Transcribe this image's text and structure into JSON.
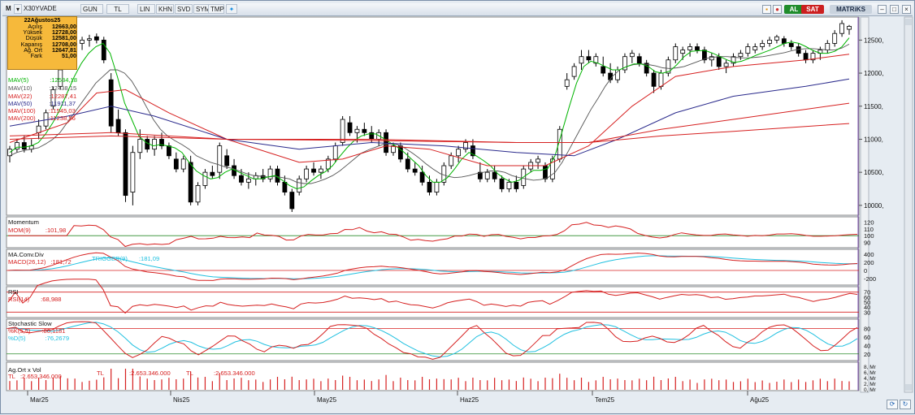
{
  "toolbar": {
    "menu_letter": "M",
    "symbol": "X30YVADE",
    "period": "GUN",
    "currency": "TL",
    "scale_buttons": [
      "LIN",
      "KHN",
      "SVD",
      "SYM",
      "TMP"
    ],
    "buy_label": "AL",
    "sell_label": "SAT",
    "brand": "MATRiKS",
    "colors": {
      "buy": "#1f8c2b",
      "sell": "#cc1f1f",
      "brand_bg": "#c9d3de"
    }
  },
  "infobox": {
    "date": "22Ağustos25",
    "rows": [
      {
        "label": "Açılış",
        "value": "12663,00"
      },
      {
        "label": "Yüksek",
        "value": "12728,00"
      },
      {
        "label": "Düşük",
        "value": "12581,00"
      },
      {
        "label": "Kapanış",
        "value": "12708,00"
      },
      {
        "label": "Ağ. Ort",
        "value": "12647,81"
      },
      {
        "label": "Fark",
        "value": "51,00"
      }
    ]
  },
  "ma_legend": [
    {
      "label": "MAV(5)",
      "value": ":12534,18",
      "color": "#00b400"
    },
    {
      "label": "MAV(10)",
      "value": ":12438,15",
      "color": "#555555"
    },
    {
      "label": "MAV(22)",
      "value": ":12287,41",
      "color": "#d62020"
    },
    {
      "label": "MAV(50)",
      "value": ":11911,37",
      "color": "#2a2a8c"
    },
    {
      "label": "MAV(100)",
      "value": ":11545,03",
      "color": "#d62020"
    },
    {
      "label": "MAV(200)",
      "value": ":11238,56",
      "color": "#d62020"
    }
  ],
  "panels": {
    "momentum": {
      "title": "Momentum",
      "label": "MOM(9)",
      "value": ":101,98",
      "ticks": [
        "120",
        "110",
        "100",
        "90"
      ],
      "color": "#d62020"
    },
    "macd": {
      "title": "MA.Conv.Div",
      "label": "MACD(26,12)",
      "value": ":181,72",
      "trigger_label": "TRIGGER(9)",
      "trigger_value": ":181,09",
      "ticks": [
        "400",
        "200",
        "0",
        "-200"
      ],
      "color": "#d62020",
      "trigger_color": "#20c0e0"
    },
    "rsi": {
      "title": "RSI",
      "label": "RSI(14)",
      "value": ":68,988",
      "ticks": [
        "70",
        "60",
        "50",
        "40",
        "30"
      ],
      "color": "#d62020"
    },
    "stoch": {
      "title": "Stochastic Slow",
      "k_label": "%K(5,5)",
      "k_value": ":80,1181",
      "d_label": "%D(5)",
      "d_value": ":76,2679",
      "ticks": [
        "80",
        "60",
        "40",
        "20"
      ],
      "k_color": "#d62020",
      "d_color": "#20c0e0"
    },
    "volume": {
      "title": "Ag.Ort x Vol",
      "unit_labels": [
        "TL",
        "TL",
        "TL"
      ],
      "values_text": [
        ":2.653.346.000",
        ":2.653.346.000",
        ":2.653.346.000"
      ],
      "ticks": [
        "8, Mr",
        "6, Mr",
        "4, Mr",
        "2, Mr",
        "0, Mr"
      ],
      "color": "#d62020"
    }
  },
  "chart_data": {
    "type": "candlestick",
    "price_axis_ticks": [
      "12500,",
      "12000,",
      "11500,",
      "11000,",
      "10500,",
      "10000,"
    ],
    "ylim": [
      9800,
      12900
    ],
    "x_labels": [
      "Mar25",
      "Nis25",
      "May25",
      "Haz25",
      "Tem25",
      "Ağu25"
    ],
    "candles_ohlc": [
      [
        10750,
        10900,
        10650,
        10850
      ],
      [
        10850,
        11000,
        10800,
        10950
      ],
      [
        10950,
        11050,
        10800,
        10850
      ],
      [
        10850,
        11000,
        10800,
        10900
      ],
      [
        11100,
        11300,
        11000,
        11200
      ],
      [
        11200,
        11450,
        11150,
        11400
      ],
      [
        11500,
        11800,
        11450,
        11750
      ],
      [
        11800,
        12100,
        11750,
        12050
      ],
      [
        12100,
        12400,
        12050,
        12350
      ],
      [
        12350,
        12500,
        12250,
        12450
      ],
      [
        12450,
        12550,
        12350,
        12500
      ],
      [
        12500,
        12580,
        12400,
        12520
      ],
      [
        12550,
        12600,
        12450,
        12500
      ],
      [
        12500,
        12550,
        12150,
        12200
      ],
      [
        11900,
        12000,
        11100,
        11200
      ],
      [
        11300,
        11450,
        11050,
        11100
      ],
      [
        11100,
        11150,
        10050,
        10150
      ],
      [
        10200,
        10900,
        10000,
        10800
      ],
      [
        10800,
        11150,
        10700,
        11000
      ],
      [
        11000,
        11050,
        10800,
        10850
      ],
      [
        10850,
        11050,
        10750,
        11000
      ],
      [
        11000,
        11100,
        10850,
        10900
      ],
      [
        10900,
        10950,
        10700,
        10750
      ],
      [
        10700,
        10800,
        10500,
        10550
      ],
      [
        10550,
        10750,
        10500,
        10700
      ],
      [
        10650,
        10750,
        10000,
        10050
      ],
      [
        10050,
        10350,
        10000,
        10300
      ],
      [
        10300,
        10550,
        10250,
        10500
      ],
      [
        10500,
        10600,
        10400,
        10450
      ],
      [
        10500,
        10950,
        10400,
        10900
      ],
      [
        10750,
        10850,
        10550,
        10600
      ],
      [
        10600,
        10700,
        10400,
        10450
      ],
      [
        10450,
        10550,
        10300,
        10350
      ],
      [
        10350,
        10500,
        10250,
        10400
      ],
      [
        10400,
        10500,
        10300,
        10450
      ],
      [
        10450,
        10550,
        10350,
        10400
      ],
      [
        10400,
        10600,
        10350,
        10550
      ],
      [
        10550,
        10600,
        10300,
        10350
      ],
      [
        10350,
        10450,
        10150,
        10200
      ],
      [
        10200,
        10250,
        9900,
        9950
      ],
      [
        10200,
        10450,
        10150,
        10400
      ],
      [
        10400,
        10600,
        10350,
        10550
      ],
      [
        10550,
        10650,
        10450,
        10500
      ],
      [
        10500,
        10600,
        10400,
        10550
      ],
      [
        10550,
        10750,
        10500,
        10700
      ],
      [
        10700,
        10950,
        10650,
        10900
      ],
      [
        10950,
        11350,
        10900,
        11300
      ],
      [
        11250,
        11350,
        11050,
        11100
      ],
      [
        11100,
        11200,
        10950,
        11150
      ],
      [
        11150,
        11250,
        11050,
        11100
      ],
      [
        11100,
        11200,
        10950,
        11000
      ],
      [
        11000,
        11150,
        10900,
        11100
      ],
      [
        11100,
        11150,
        10750,
        10800
      ],
      [
        10800,
        10950,
        10750,
        10900
      ],
      [
        10900,
        10950,
        10650,
        10700
      ],
      [
        10700,
        10800,
        10500,
        10550
      ],
      [
        10550,
        10650,
        10450,
        10500
      ],
      [
        10500,
        10600,
        10300,
        10350
      ],
      [
        10350,
        10450,
        10150,
        10200
      ],
      [
        10200,
        10400,
        10150,
        10350
      ],
      [
        10350,
        10650,
        10300,
        10600
      ],
      [
        10600,
        10800,
        10550,
        10750
      ],
      [
        10750,
        10900,
        10650,
        10850
      ],
      [
        10850,
        11000,
        10800,
        10950
      ],
      [
        10900,
        11000,
        10700,
        10750
      ],
      [
        10500,
        10650,
        10350,
        10400
      ],
      [
        10400,
        10550,
        10350,
        10500
      ],
      [
        10500,
        10600,
        10350,
        10400
      ],
      [
        10400,
        10450,
        10200,
        10250
      ],
      [
        10250,
        10400,
        10200,
        10350
      ],
      [
        10350,
        10450,
        10200,
        10250
      ],
      [
        10300,
        10600,
        10250,
        10550
      ],
      [
        10550,
        10700,
        10500,
        10650
      ],
      [
        10650,
        10750,
        10550,
        10700
      ],
      [
        10600,
        10650,
        10350,
        10400
      ],
      [
        10400,
        10750,
        10350,
        10700
      ],
      [
        10700,
        11200,
        10650,
        11150
      ],
      [
        11800,
        12000,
        11750,
        11900
      ],
      [
        11950,
        12150,
        11900,
        12100
      ],
      [
        12150,
        12350,
        12050,
        12250
      ],
      [
        12250,
        12350,
        12150,
        12200
      ],
      [
        12150,
        12300,
        12100,
        12250
      ],
      [
        12100,
        12250,
        11950,
        12000
      ],
      [
        12000,
        12150,
        11850,
        11900
      ],
      [
        11900,
        12100,
        11850,
        12050
      ],
      [
        12050,
        12300,
        12000,
        12250
      ],
      [
        12250,
        12350,
        12150,
        12300
      ],
      [
        12250,
        12300,
        12100,
        12150
      ],
      [
        12150,
        12200,
        11950,
        12000
      ],
      [
        12000,
        12050,
        11700,
        11800
      ],
      [
        11800,
        12050,
        11750,
        12000
      ],
      [
        12000,
        12250,
        11950,
        12200
      ],
      [
        12200,
        12450,
        12150,
        12400
      ],
      [
        12300,
        12400,
        12200,
        12350
      ],
      [
        12350,
        12450,
        12250,
        12400
      ],
      [
        12400,
        12450,
        12300,
        12350
      ],
      [
        12350,
        12400,
        12150,
        12200
      ],
      [
        12200,
        12300,
        12100,
        12250
      ],
      [
        12250,
        12300,
        12050,
        12100
      ],
      [
        12100,
        12200,
        12000,
        12150
      ],
      [
        12150,
        12300,
        12100,
        12250
      ],
      [
        12250,
        12350,
        12200,
        12300
      ],
      [
        12300,
        12450,
        12250,
        12400
      ],
      [
        12350,
        12450,
        12300,
        12400
      ],
      [
        12400,
        12500,
        12350,
        12450
      ],
      [
        12450,
        12550,
        12400,
        12500
      ],
      [
        12500,
        12580,
        12450,
        12550
      ],
      [
        12520,
        12560,
        12400,
        12450
      ],
      [
        12450,
        12500,
        12350,
        12400
      ],
      [
        12400,
        12450,
        12250,
        12300
      ],
      [
        12300,
        12350,
        12150,
        12200
      ],
      [
        12200,
        12350,
        12150,
        12300
      ],
      [
        12300,
        12400,
        12200,
        12350
      ],
      [
        12350,
        12500,
        12300,
        12450
      ],
      [
        12450,
        12650,
        12400,
        12600
      ],
      [
        12600,
        12800,
        12550,
        12750
      ],
      [
        12663,
        12728,
        12581,
        12708
      ]
    ],
    "ma_series": {
      "MAV(5)": [
        10800,
        10880,
        10880,
        10900,
        10950,
        11080,
        11250,
        11450,
        11700,
        11950,
        12150,
        12300,
        12400,
        12450,
        12300,
        11950,
        11550,
        11300,
        11050,
        10950,
        10900,
        10920,
        10900,
        10870,
        10800,
        10650,
        10520,
        10450,
        10400,
        10420,
        10500,
        10550,
        10500,
        10450,
        10400,
        10400,
        10430,
        10450,
        10380,
        10300,
        10250,
        10280,
        10370,
        10450,
        10510,
        10600,
        10740,
        10870,
        10980,
        11050,
        11080,
        11080,
        11020,
        10950,
        10880,
        10800,
        10700,
        10600,
        10450,
        10350,
        10350,
        10420,
        10550,
        10700,
        10800,
        10750,
        10680,
        10600,
        10480,
        10400,
        10350,
        10380,
        10460,
        10530,
        10530,
        10560,
        10750,
        11120,
        11500,
        11850,
        12100,
        12180,
        12150,
        12100,
        12050,
        12050,
        12100,
        12140,
        12140,
        12100,
        12020,
        12000,
        12030,
        12130,
        12250,
        12330,
        12340,
        12340,
        12300,
        12250,
        12200,
        12160,
        12180,
        12220,
        12270,
        12310,
        12350,
        12400,
        12450,
        12470,
        12450,
        12400,
        12340,
        12300,
        12300,
        12330,
        12400,
        12534
      ],
      "MAV(10)": [
        10750,
        10800,
        10830,
        10850,
        10870,
        10930,
        11000,
        11100,
        11250,
        11400,
        11550,
        11700,
        11850,
        11950,
        12050,
        12050,
        12000,
        11880,
        11700,
        11500,
        11300,
        11150,
        11050,
        10980,
        10920,
        10850,
        10750,
        10700,
        10650,
        10620,
        10580,
        10560,
        10520,
        10480,
        10450,
        10440,
        10430,
        10440,
        10420,
        10400,
        10350,
        10330,
        10330,
        10360,
        10400,
        10450,
        10520,
        10610,
        10700,
        10790,
        10840,
        10880,
        10920,
        10930,
        10920,
        10870,
        10800,
        10720,
        10630,
        10550,
        10480,
        10440,
        10420,
        10430,
        10450,
        10480,
        10500,
        10520,
        10520,
        10500,
        10450,
        10420,
        10400,
        10380,
        10390,
        10420,
        10500,
        10650,
        10850,
        11050,
        11250,
        11450,
        11620,
        11800,
        11950,
        12050,
        12100,
        12130,
        12140,
        12130,
        12110,
        12080,
        12070,
        12080,
        12100,
        12140,
        12180,
        12220,
        12240,
        12250,
        12250,
        12240,
        12230,
        12230,
        12240,
        12250,
        12270,
        12290,
        12310,
        12340,
        12360,
        12370,
        12370,
        12360,
        12350,
        12350,
        12380,
        12438
      ]
    },
    "panel_series_note": "indicator panels drawn from the same series shapes"
  }
}
